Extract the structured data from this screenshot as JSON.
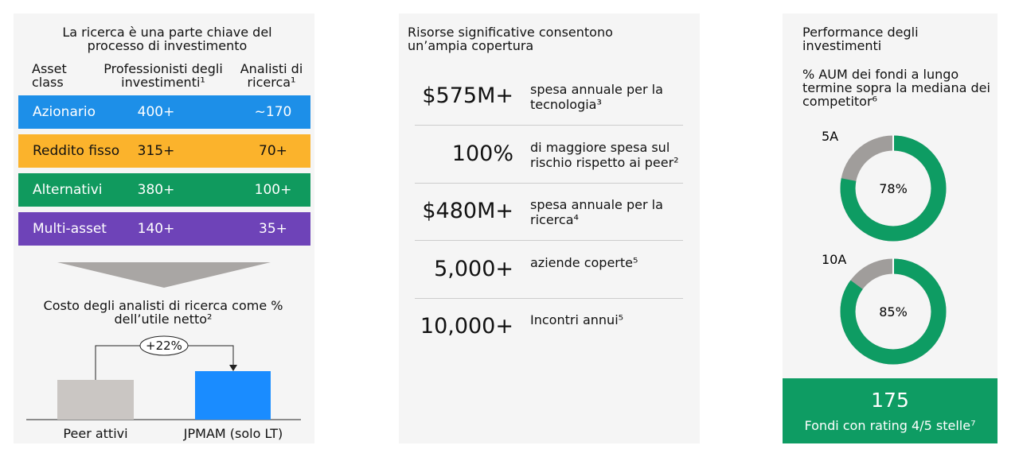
{
  "left_panel": {
    "title": "La ricerca è una parte chiave del processo di investimento",
    "headers": [
      "Asset class",
      "Professionisti degli investimenti¹",
      "Analisti di ricerca¹"
    ],
    "rows": [
      [
        "Azionario",
        "400+",
        "~170"
      ],
      [
        "Reddito fisso",
        "315+",
        "70+"
      ],
      [
        "Alternativi",
        "380+",
        "100+"
      ],
      [
        "Multi-asset",
        "140+",
        "35+"
      ]
    ],
    "cost_title": "Costo degli analisti di ricerca come % dell’utile netto²",
    "difference": "+22%",
    "bar_labels": [
      "Peer attivi",
      "JPMAM (solo LT)"
    ]
  },
  "middle_panel": {
    "title": "Risorse significative consentono un’ampia copertura",
    "items": [
      [
        "$575M+",
        "spesa annuale per la tecnologia³"
      ],
      [
        "100%",
        "di maggiore spesa sul rischio rispetto ai peer²"
      ],
      [
        "$480M+",
        "spesa annuale per la ricerca⁴"
      ],
      [
        "5,000+",
        "aziende coperte⁵"
      ],
      [
        "10,000+",
        "Incontri annui⁵"
      ]
    ]
  },
  "right_panel": {
    "title": "Performance degli investimenti",
    "subtitle": "% AUM dei fondi a lungo termine sopra la mediana dei competitor⁶",
    "donuts": [
      {
        "period": "5A",
        "value": 78,
        "label": "78%"
      },
      {
        "period": "10A",
        "value": 85,
        "label": "85%"
      }
    ],
    "fund_count": "175",
    "fund_caption": "Fondi con rating 4/5 stelle⁷"
  }
}
